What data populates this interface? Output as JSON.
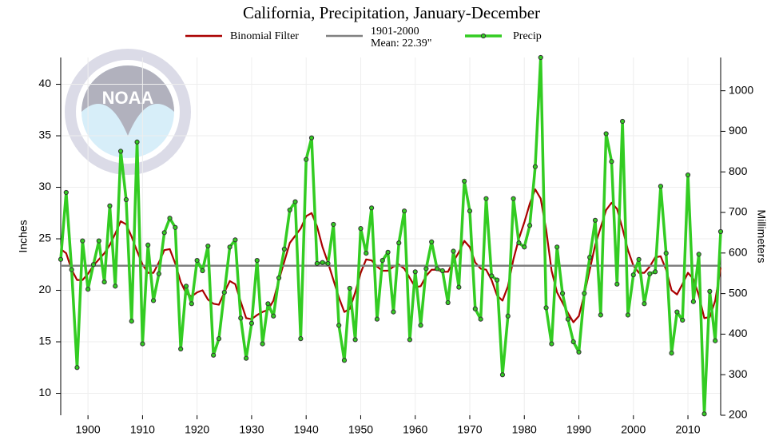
{
  "chart_data": {
    "type": "line",
    "title": "California, Precipitation, January-December",
    "logo_text": "NOAA",
    "y_label": "Inches",
    "y2_label": "Millimeters",
    "xlim": [
      1895,
      2016
    ],
    "xticks": [
      1900,
      1910,
      1920,
      1930,
      1940,
      1950,
      1960,
      1970,
      1980,
      1990,
      2000,
      2010
    ],
    "ylim": [
      7.87,
      42.6
    ],
    "yticks": [
      10,
      15,
      20,
      25,
      30,
      35,
      40
    ],
    "y2lim": [
      200,
      1082
    ],
    "y2ticks": [
      200,
      300,
      400,
      500,
      600,
      700,
      800,
      900,
      1000
    ],
    "grid": true,
    "x": [
      1895,
      1896,
      1897,
      1898,
      1899,
      1900,
      1901,
      1902,
      1903,
      1904,
      1905,
      1906,
      1907,
      1908,
      1909,
      1910,
      1911,
      1912,
      1913,
      1914,
      1915,
      1916,
      1917,
      1918,
      1919,
      1920,
      1921,
      1922,
      1923,
      1924,
      1925,
      1926,
      1927,
      1928,
      1929,
      1930,
      1931,
      1932,
      1933,
      1934,
      1935,
      1936,
      1937,
      1938,
      1939,
      1940,
      1941,
      1942,
      1943,
      1944,
      1945,
      1946,
      1947,
      1948,
      1949,
      1950,
      1951,
      1952,
      1953,
      1954,
      1955,
      1956,
      1957,
      1958,
      1959,
      1960,
      1961,
      1962,
      1963,
      1964,
      1965,
      1966,
      1967,
      1968,
      1969,
      1970,
      1971,
      1972,
      1973,
      1974,
      1975,
      1976,
      1977,
      1978,
      1979,
      1980,
      1981,
      1982,
      1983,
      1984,
      1985,
      1986,
      1987,
      1988,
      1989,
      1990,
      1991,
      1992,
      1993,
      1994,
      1995,
      1996,
      1997,
      1998,
      1999,
      2000,
      2001,
      2002,
      2003,
      2004,
      2005,
      2006,
      2007,
      2008,
      2009,
      2010,
      2011,
      2012,
      2013,
      2014,
      2015,
      2016
    ],
    "series": [
      {
        "name": "Binomial Filter",
        "color": "#aa0000",
        "values": [
          24,
          23.6,
          22,
          21,
          21,
          21.6,
          22.4,
          23,
          23.6,
          24.4,
          25.5,
          26.7,
          26.4,
          25.2,
          23.8,
          22.5,
          21.7,
          21.7,
          22.7,
          23.9,
          24,
          22.6,
          20.8,
          19.7,
          19.4,
          19.8,
          20,
          19.1,
          18.7,
          18.6,
          19.8,
          20.9,
          20.6,
          18.9,
          17.3,
          17.2,
          17.6,
          17.9,
          18.1,
          19,
          21,
          22.8,
          24.6,
          25.3,
          26,
          27.2,
          27.5,
          26.2,
          24.2,
          22.7,
          21,
          19.3,
          17.9,
          18.2,
          19.8,
          21.7,
          23,
          22.9,
          22.3,
          21.9,
          21.9,
          22.3,
          22.5,
          22.1,
          21.2,
          20.3,
          20.4,
          21.4,
          22,
          22,
          21.8,
          21.8,
          22.8,
          23.7,
          24.8,
          24.2,
          22.7,
          22.1,
          22,
          21,
          19.5,
          19,
          20.4,
          23,
          25,
          26.6,
          28.4,
          29.8,
          28.9,
          25.9,
          21.9,
          19.8,
          18.8,
          17.8,
          16.9,
          17.5,
          19.6,
          22,
          24.4,
          26.1,
          27.8,
          28.5,
          27.9,
          26,
          23.9,
          22.4,
          21.7,
          21.7,
          22.3,
          23.2,
          23.3,
          22,
          20,
          19.6,
          20.6,
          21.7,
          21.1,
          19.5,
          17.3,
          17.4,
          19,
          22.2
        ]
      },
      {
        "name": "1901-2000\nMean: 22.39\"",
        "color": "#808080",
        "value": 22.39
      },
      {
        "name": "Precip",
        "color": "#33cc22",
        "values": [
          23,
          29.5,
          22,
          12.5,
          24.8,
          20.1,
          22.5,
          24.8,
          20.8,
          28.2,
          20.4,
          33.5,
          28.8,
          17,
          34.4,
          14.8,
          24.4,
          19,
          21.6,
          25.6,
          27,
          26.1,
          14.3,
          20.4,
          18.7,
          22.9,
          21.9,
          24.3,
          13.7,
          15.3,
          19.8,
          24.2,
          24.9,
          17.3,
          13.4,
          16.8,
          22.9,
          14.8,
          18.7,
          17.5,
          21.2,
          24,
          27.8,
          28.6,
          15.3,
          32.7,
          34.8,
          22.6,
          22.7,
          22.6,
          26.4,
          16.6,
          13.2,
          20.2,
          15.2,
          26,
          23.6,
          28,
          17.2,
          22.9,
          23.7,
          17.9,
          24.6,
          27.7,
          15.2,
          21.8,
          16.6,
          22.1,
          24.7,
          22.1,
          21.9,
          18.8,
          23.8,
          20.3,
          30.6,
          27.7,
          18.2,
          17.2,
          28.9,
          21.4,
          21,
          11.8,
          17.5,
          28.9,
          24.6,
          24.2,
          26.3,
          32,
          42.6,
          18.3,
          14.8,
          24.2,
          19.7,
          17.2,
          15,
          14,
          19.7,
          23.2,
          26.8,
          17.6,
          35.2,
          32.5,
          20.6,
          36.4,
          17.6,
          21.5,
          23,
          18.7,
          21.6,
          21.8,
          30.1,
          23.6,
          13.9,
          17.9,
          17.1,
          31.2,
          18.9,
          23.5,
          8,
          19.9,
          15.1,
          25.7
        ]
      }
    ]
  }
}
